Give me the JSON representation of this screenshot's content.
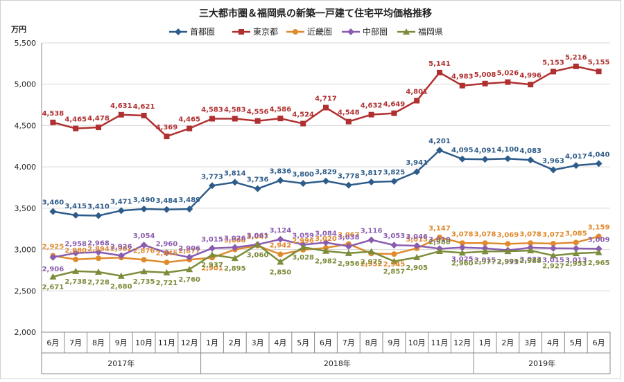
{
  "chart_data": {
    "type": "line",
    "title": "三大都市圏＆福岡県の新築一戸建て住宅平均価格推移",
    "yunit": "万円",
    "ylim": [
      2000,
      5500
    ],
    "yticks": [
      "2,000",
      "2,500",
      "3,000",
      "3,500",
      "4,000",
      "4,500",
      "5,000",
      "5,500"
    ],
    "grid": true,
    "legend_position": "top",
    "categories": [
      "6月",
      "7月",
      "8月",
      "9月",
      "10月",
      "11月",
      "12月",
      "1月",
      "2月",
      "3月",
      "4月",
      "5月",
      "6月",
      "7月",
      "8月",
      "9月",
      "10月",
      "11月",
      "12月",
      "1月",
      "2月",
      "3月",
      "4月",
      "5月",
      "6月"
    ],
    "years": [
      {
        "label": "2017年",
        "start": 0,
        "end": 6
      },
      {
        "label": "2018年",
        "start": 7,
        "end": 18
      },
      {
        "label": "2019年",
        "start": 19,
        "end": 24
      }
    ],
    "series": [
      {
        "name": "首都圏",
        "color": "#2e5c8a",
        "marker": "diamond",
        "values": [
          3460,
          3415,
          3410,
          3471,
          3490,
          3484,
          3489,
          3773,
          3814,
          3736,
          3836,
          3800,
          3829,
          3778,
          3817,
          3825,
          3941,
          4201,
          4095,
          4091,
          4100,
          4083,
          3963,
          4017,
          4040
        ],
        "labels": [
          "3,460",
          "3,415",
          "3,410",
          "3,471",
          "3,490",
          "3,484",
          "3,489",
          "3,773",
          "3,814",
          "3,736",
          "3,836",
          "3,800",
          "3,829",
          "3,778",
          "3,817",
          "3,825",
          "3,941",
          "4,201",
          "4,095",
          "4,091",
          "4,100",
          "4,083",
          "3,963",
          "4,017",
          "4,040"
        ]
      },
      {
        "name": "東京都",
        "color": "#b03030",
        "marker": "square",
        "values": [
          4538,
          4465,
          4478,
          4631,
          4621,
          4369,
          4465,
          4583,
          4583,
          4556,
          4586,
          4524,
          4717,
          4548,
          4632,
          4649,
          4801,
          5141,
          4983,
          5008,
          5026,
          4996,
          5153,
          5216,
          5155
        ],
        "labels": [
          "4,538",
          "4,465",
          "4,478",
          "4,631",
          "4,621",
          "4,369",
          "4,465",
          "4,583",
          "4,583",
          "4,556",
          "4,586",
          "4,524",
          "4,717",
          "4,548",
          "4,632",
          "4,649",
          "4,801",
          "5,141",
          "4,983",
          "5,008",
          "5,026",
          "4,996",
          "5,153",
          "5,216",
          "5,155"
        ]
      },
      {
        "name": "近畿圏",
        "color": "#e08a2e",
        "marker": "circle",
        "values": [
          2925,
          2880,
          2894,
          2902,
          2876,
          2845,
          2877,
          2901,
          3000,
          3047,
          2942,
          2996,
          3020,
          3067,
          2952,
          2945,
          3015,
          3147,
          3078,
          3078,
          3069,
          3078,
          3072,
          3085,
          3159
        ],
        "labels": [
          "2,925",
          "2,880",
          "2,894",
          "2,902",
          "2,876",
          "2,845",
          "2,877",
          "2,901",
          "3,000",
          "3,047",
          "2,942",
          "2,996",
          "3,020",
          "3,067",
          "2,952",
          "2,945",
          "3,015",
          "3,147",
          "3,078",
          "3,078",
          "3,069",
          "3,078",
          "3,072",
          "3,085",
          "3,159"
        ]
      },
      {
        "name": "中部圏",
        "color": "#8a5cb0",
        "marker": "diamond",
        "values": [
          2906,
          2958,
          2968,
          2926,
          3054,
          2960,
          2906,
          3015,
          3026,
          3061,
          3124,
          3059,
          3084,
          3038,
          3116,
          3053,
          3046,
          3010,
          3025,
          3015,
          2991,
          3023,
          3015,
          3013,
          3009
        ],
        "labels": [
          "2,906",
          "2,958",
          "2,968",
          "2,926",
          "3,054",
          "2,960",
          "2,906",
          "3,015",
          "3,026",
          "3,061",
          "3,124",
          "3,059",
          "3,084",
          "3,038",
          "3,116",
          "3,053",
          "3,046",
          "3,010",
          "3,025",
          "3,015",
          "2,991",
          "3,023",
          "3,015",
          "3,013",
          "3,009"
        ]
      },
      {
        "name": "福岡県",
        "color": "#7b8c3a",
        "marker": "triangle",
        "values": [
          2671,
          2738,
          2728,
          2680,
          2735,
          2721,
          2760,
          2937,
          2895,
          3060,
          2850,
          3028,
          2982,
          2956,
          2975,
          2857,
          2905,
          2980,
          2960,
          2977,
          2979,
          2988,
          2927,
          2953,
          2965
        ],
        "labels": [
          "2,671",
          "2,738",
          "2,728",
          "2,680",
          "2,735",
          "2,721",
          "2,760",
          "2,937",
          "2,895",
          "3,060",
          "2,850",
          "3,028",
          "2,982",
          "2,956",
          "2,975",
          "2,857",
          "2,905",
          "2,980",
          "2,960",
          "2,977",
          "2,979",
          "2,988",
          "2,927",
          "2,953",
          "2,965"
        ]
      }
    ]
  }
}
